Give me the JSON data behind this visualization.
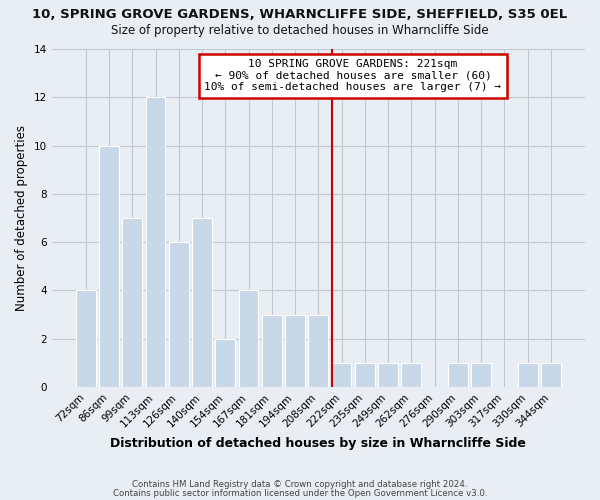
{
  "title1": "10, SPRING GROVE GARDENS, WHARNCLIFFE SIDE, SHEFFIELD, S35 0EL",
  "title2": "Size of property relative to detached houses in Wharncliffe Side",
  "xlabel": "Distribution of detached houses by size in Wharncliffe Side",
  "ylabel": "Number of detached properties",
  "bar_labels": [
    "72sqm",
    "86sqm",
    "99sqm",
    "113sqm",
    "126sqm",
    "140sqm",
    "154sqm",
    "167sqm",
    "181sqm",
    "194sqm",
    "208sqm",
    "222sqm",
    "235sqm",
    "249sqm",
    "262sqm",
    "276sqm",
    "290sqm",
    "303sqm",
    "317sqm",
    "330sqm",
    "344sqm"
  ],
  "bar_values": [
    4,
    10,
    7,
    12,
    6,
    7,
    2,
    4,
    3,
    3,
    3,
    1,
    1,
    1,
    1,
    0,
    1,
    1,
    0,
    1,
    1
  ],
  "bar_color": "#c8d8e8",
  "bar_edge_color": "#ffffff",
  "ylim": [
    0,
    14
  ],
  "yticks": [
    0,
    2,
    4,
    6,
    8,
    10,
    12,
    14
  ],
  "reference_line_x_label": "222sqm",
  "reference_line_color": "#cc0000",
  "annotation_title": "10 SPRING GROVE GARDENS: 221sqm",
  "annotation_line1": "← 90% of detached houses are smaller (60)",
  "annotation_line2": "10% of semi-detached houses are larger (7) →",
  "annotation_box_color": "#ffffff",
  "annotation_box_edge_color": "#cc0000",
  "footer1": "Contains HM Land Registry data © Crown copyright and database right 2024.",
  "footer2": "Contains public sector information licensed under the Open Government Licence v3.0.",
  "background_color": "#e8eef4",
  "plot_background_color": "#e8eef4",
  "grid_color": "#c0c8d0"
}
